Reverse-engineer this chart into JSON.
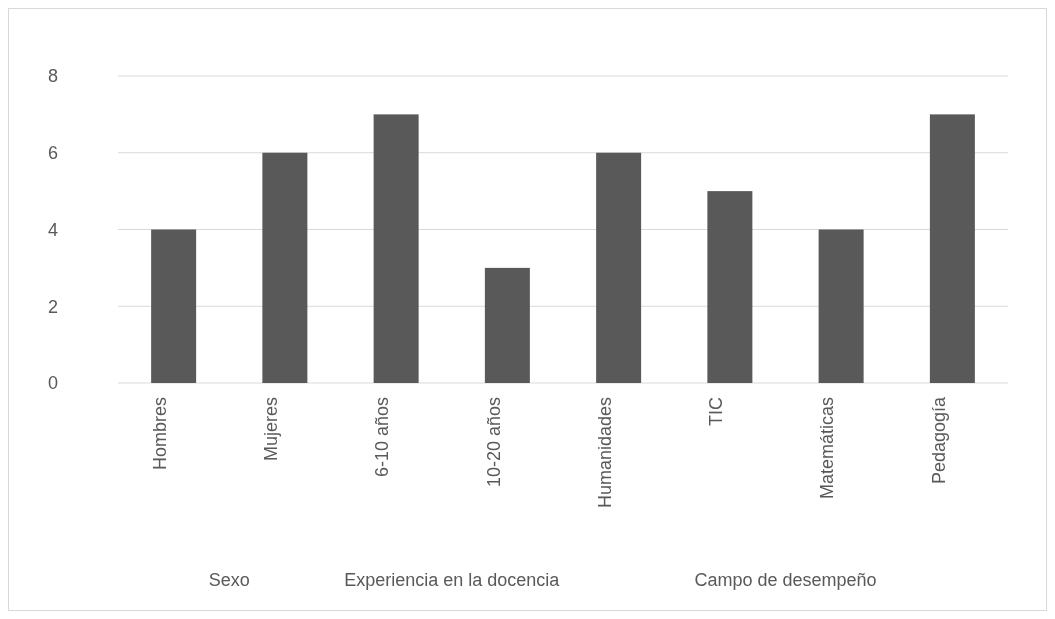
{
  "chart_data": {
    "type": "bar",
    "categories": [
      "Hombres",
      "Mujeres",
      "6-10 años",
      "10-20 años",
      "Humanidades",
      "TIC",
      "Matemáticas",
      "Pedagogía"
    ],
    "values": [
      4,
      6,
      7,
      3,
      6,
      5,
      4,
      7
    ],
    "color": "#595959",
    "ylim": [
      0,
      8
    ],
    "yticks": [
      0,
      2,
      4,
      6,
      8
    ],
    "grid": "y",
    "annotations": [
      "Sexo",
      "Experiencia en la docencia",
      "Campo de desempeño"
    ]
  }
}
